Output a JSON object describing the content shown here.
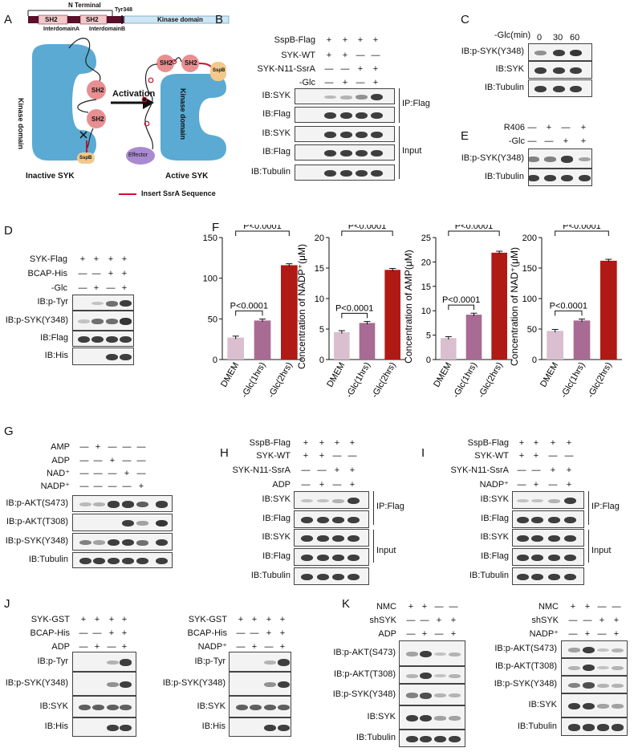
{
  "panels": {
    "A": {
      "letter": "A",
      "domain_bar": {
        "n_terminal": "N Terminal",
        "sh2_1": "SH2",
        "sh2_2": "SH2",
        "interdomain_a": "InterdomainA",
        "interdomain_b": "InterdomainB",
        "tyr": "Tyr348",
        "kinase": "Kinase domain"
      },
      "inactive": {
        "kinase": "Kinase domain",
        "sh2a": "SH2",
        "sh2b": "SH2",
        "sspb": "SspB",
        "caption": "Inactive SYK"
      },
      "active": {
        "sh2a": "SH2",
        "sh2b": "SH2",
        "kinase": "Kinase domain",
        "sspb": "SspB",
        "effector": "Effector",
        "caption": "Active SYK"
      },
      "arrow_label": "Activation",
      "legend": "Insert SsrA Sequence",
      "colors": {
        "kinase": "#5aaad3",
        "sh2": "#e88f91",
        "sspb": "#f2c98b",
        "effector": "#a98ad0",
        "ssra": "#c8102e"
      }
    },
    "B": {
      "letter": "B",
      "conditions": [
        {
          "label": "SspB-Flag",
          "marks": [
            "+",
            "+",
            "+",
            "+"
          ]
        },
        {
          "label": "SYK-WT",
          "marks": [
            "+",
            "+",
            "—",
            "—"
          ]
        },
        {
          "label": "SYK-N11-SsrA",
          "marks": [
            "—",
            "—",
            "+",
            "+"
          ]
        },
        {
          "label": "-Glc",
          "marks": [
            "—",
            "+",
            "—",
            "+"
          ]
        }
      ],
      "blots": [
        "IB:SYK",
        "IB:Flag",
        "IB:SYK",
        "IB:Flag",
        "IB:Tubulin"
      ],
      "groups": [
        "IP:Flag",
        "Input"
      ]
    },
    "C": {
      "letter": "C",
      "header_label": "-Glc(min)",
      "timepoints": [
        "0",
        "30",
        "60"
      ],
      "blots": [
        "IB:p-SYK(Y348)",
        "IB:SYK",
        "IB:Tubulin"
      ]
    },
    "D": {
      "letter": "D",
      "conditions": [
        {
          "label": "SYK-Flag",
          "marks": [
            "+",
            "+",
            "+",
            "+"
          ]
        },
        {
          "label": "BCAP-His",
          "marks": [
            "—",
            "—",
            "+",
            "+"
          ]
        },
        {
          "label": "-Glc",
          "marks": [
            "—",
            "+",
            "—",
            "+"
          ]
        }
      ],
      "blots": [
        "IB:p-Tyr",
        "IB:p-SYK(Y348)",
        "IB:Flag",
        "IB:His"
      ]
    },
    "E": {
      "letter": "E",
      "conditions": [
        {
          "label": "R406",
          "marks": [
            "—",
            "+",
            "—",
            "+"
          ]
        },
        {
          "label": "-Glc",
          "marks": [
            "—",
            "—",
            "+",
            "+"
          ]
        }
      ],
      "blots": [
        "IB:p-SYK(Y348)",
        "IB:Tubulin"
      ]
    },
    "F": {
      "letter": "F"
    },
    "G": {
      "letter": "G",
      "conditions": [
        {
          "label": "AMP",
          "marks": [
            "—",
            "+",
            "—",
            "—",
            "—"
          ]
        },
        {
          "label": "ADP",
          "marks": [
            "—",
            "—",
            "+",
            "—",
            "—"
          ]
        },
        {
          "label": "NAD⁺",
          "marks": [
            "—",
            "—",
            "—",
            "+",
            "—"
          ]
        },
        {
          "label": "NADP⁺",
          "marks": [
            "—",
            "—",
            "—",
            "—",
            "+"
          ]
        }
      ],
      "blots": [
        "IB:p-AKT(S473)",
        "IB:p-AKT(T308)",
        "IB:p-SYK(Y348)",
        "IB:Tubulin"
      ]
    },
    "H": {
      "letter": "H",
      "conditions": [
        {
          "label": "SspB-Flag",
          "marks": [
            "+",
            "+",
            "+",
            "+"
          ]
        },
        {
          "label": "SYK-WT",
          "marks": [
            "+",
            "+",
            "—",
            "—"
          ]
        },
        {
          "label": "SYK-N11-SsrA",
          "marks": [
            "—",
            "—",
            "+",
            "+"
          ]
        },
        {
          "label": "ADP",
          "marks": [
            "—",
            "+",
            "—",
            "+"
          ]
        }
      ],
      "blots": [
        "IB:SYK",
        "IB:Flag",
        "IB:SYK",
        "IB:Flag",
        "IB:Tubulin"
      ],
      "groups": [
        "IP:Flag",
        "Input"
      ]
    },
    "I": {
      "letter": "I",
      "conditions": [
        {
          "label": "SspB-Flag",
          "marks": [
            "+",
            "+",
            "+",
            "+"
          ]
        },
        {
          "label": "SYK-WT",
          "marks": [
            "+",
            "+",
            "—",
            "—"
          ]
        },
        {
          "label": "SYK-N11-SsrA",
          "marks": [
            "—",
            "—",
            "+",
            "+"
          ]
        },
        {
          "label": "NADP⁺",
          "marks": [
            "—",
            "+",
            "—",
            "+"
          ]
        }
      ],
      "blots": [
        "IB:SYK",
        "IB:Flag",
        "IB:SYK",
        "IB:Flag",
        "IB:Tubulin"
      ],
      "groups": [
        "IP:Flag",
        "Input"
      ]
    },
    "J": {
      "letter": "J",
      "left": {
        "conditions": [
          {
            "label": "SYK-GST",
            "marks": [
              "+",
              "+",
              "+",
              "+"
            ]
          },
          {
            "label": "BCAP-His",
            "marks": [
              "—",
              "—",
              "+",
              "+"
            ]
          },
          {
            "label": "ADP",
            "marks": [
              "—",
              "+",
              "—",
              "+"
            ]
          }
        ],
        "blots": [
          "IB:p-Tyr",
          "IB:p-SYK(Y348)",
          "IB:SYK",
          "IB:His"
        ]
      },
      "right": {
        "conditions": [
          {
            "label": "SYK-GST",
            "marks": [
              "+",
              "+",
              "+",
              "+"
            ]
          },
          {
            "label": "BCAP-His",
            "marks": [
              "—",
              "—",
              "+",
              "+"
            ]
          },
          {
            "label": "NADP⁺",
            "marks": [
              "—",
              "+",
              "—",
              "+"
            ]
          }
        ],
        "blots": [
          "IB:p-Tyr",
          "IB:p-SYK(Y348)",
          "IB:SYK",
          "IB:His"
        ]
      }
    },
    "K": {
      "letter": "K",
      "left": {
        "conditions": [
          {
            "label": "NMC",
            "marks": [
              "+",
              "+",
              "—",
              "—"
            ]
          },
          {
            "label": "shSYK",
            "marks": [
              "—",
              "—",
              "+",
              "+"
            ]
          },
          {
            "label": "ADP",
            "marks": [
              "—",
              "+",
              "—",
              "+"
            ]
          }
        ],
        "blots": [
          "IB:p-AKT(S473)",
          "IB:p-AKT(T308)",
          "IB:p-SYK(Y348)",
          "IB:SYK",
          "IB:Tubulin"
        ]
      },
      "right": {
        "conditions": [
          {
            "label": "NMC",
            "marks": [
              "+",
              "+",
              "—",
              "—"
            ]
          },
          {
            "label": "shSYK",
            "marks": [
              "—",
              "—",
              "+",
              "+"
            ]
          },
          {
            "label": "NADP⁺",
            "marks": [
              "—",
              "+",
              "—",
              "+"
            ]
          }
        ],
        "blots": [
          "IB:p-AKT(S473)",
          "IB:p-AKT(T308)",
          "IB:p-SYK(Y348)",
          "IB:SYK",
          "IB:Tubulin"
        ]
      }
    }
  },
  "chart_data": [
    {
      "type": "bar",
      "ylabel": "Concentration of ADP(μM)",
      "categories": [
        "DMEM",
        "-Glc(1hrs)",
        "-Glc(2hrs)"
      ],
      "values": [
        27,
        48,
        116
      ],
      "ylim": [
        0,
        150
      ],
      "yticks": [
        "0",
        "50",
        "100",
        "150"
      ],
      "colors": [
        "#d9bfcf",
        "#a86b93",
        "#b01a14"
      ],
      "annotations": [
        "P<0.0001",
        "P<0.0001"
      ]
    },
    {
      "type": "bar",
      "ylabel": "Concentration of NADP⁺(μM)",
      "categories": [
        "DMEM",
        "-Glc(1hrs)",
        "-Glc(2hrs)"
      ],
      "values": [
        4.5,
        6.0,
        14.7
      ],
      "ylim": [
        0,
        20
      ],
      "yticks": [
        "0",
        "5",
        "10",
        "15",
        "20"
      ],
      "colors": [
        "#d9bfcf",
        "#a86b93",
        "#b01a14"
      ],
      "annotations": [
        "P<0.0001",
        "P<0.0001"
      ]
    },
    {
      "type": "bar",
      "ylabel": "Concentration of AMP(μM)",
      "categories": [
        "DMEM",
        "-Glc(1hrs)",
        "-Glc(2hrs)"
      ],
      "values": [
        4.4,
        9.2,
        21.9
      ],
      "ylim": [
        0,
        25
      ],
      "yticks": [
        "0",
        "5",
        "10",
        "15",
        "20",
        "25"
      ],
      "colors": [
        "#d9bfcf",
        "#a86b93",
        "#b01a14"
      ],
      "annotations": [
        "P<0.0001",
        "P<0.0001"
      ]
    },
    {
      "type": "bar",
      "ylabel": "Concentration of NAD⁺(μM)",
      "categories": [
        "DMEM",
        "-Glc(1hrs)",
        "-Glc(2hrs)"
      ],
      "values": [
        47,
        64,
        162
      ],
      "ylim": [
        0,
        200
      ],
      "yticks": [
        "0",
        "50",
        "100",
        "150",
        "200"
      ],
      "colors": [
        "#d9bfcf",
        "#a86b93",
        "#b01a14"
      ],
      "annotations": [
        "P<0.0001",
        "P<0.0001"
      ]
    }
  ]
}
